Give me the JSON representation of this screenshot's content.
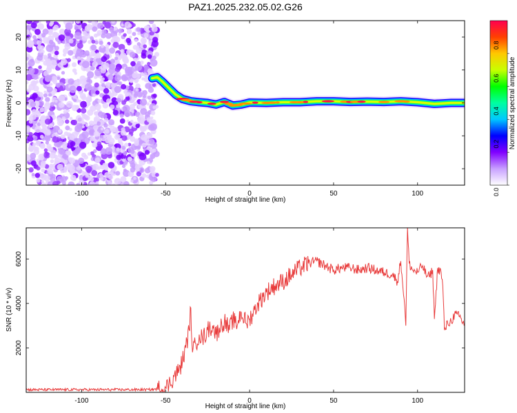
{
  "chart_data": [
    {
      "type": "heatmap",
      "title": "PAZ1.2025.232.05.02.G26",
      "xlabel": "Height of straight line (km)",
      "ylabel": "Frequency (Hz)",
      "xlim": [
        -133,
        128
      ],
      "ylim": [
        -25,
        25
      ],
      "xticks": [
        -100,
        -50,
        0,
        50,
        100
      ],
      "yticks": [
        -20,
        -10,
        0,
        10,
        20
      ],
      "colorbar": {
        "label": "Normalized spectral amplitude",
        "range": [
          0,
          1
        ],
        "ticks": [
          "0.0",
          "0.2",
          "0.4",
          "0.6",
          "0.8"
        ],
        "colors": [
          "#ffffff",
          "#c8a0ff",
          "#8000ff",
          "#0000ff",
          "#00c8ff",
          "#00ffa0",
          "#00ff00",
          "#c8ff00",
          "#ffc800",
          "#ff4000",
          "#ff0050"
        ]
      },
      "signal_ridge": {
        "x": [
          -58,
          -55,
          -52,
          -48,
          -44,
          -40,
          -35,
          -30,
          -25,
          -20,
          -15,
          -10,
          -5,
          0,
          10,
          20,
          30,
          40,
          50,
          60,
          70,
          80,
          90,
          100,
          110,
          120,
          128
        ],
        "y": [
          7.5,
          7.8,
          6.5,
          4.5,
          2.5,
          1.2,
          0.5,
          0.2,
          0.0,
          -0.5,
          0.3,
          -0.8,
          -0.5,
          0.1,
          0.0,
          0.2,
          0.2,
          0.5,
          0.5,
          0.3,
          0.4,
          0.3,
          0.5,
          0.2,
          -0.3,
          0.0,
          0.0
        ]
      }
    },
    {
      "type": "line",
      "title": "",
      "xlabel": "Height of straight line (km)",
      "ylabel": "SNR (10 * v/v)",
      "xlim": [
        -133,
        128
      ],
      "ylim": [
        0,
        7400
      ],
      "xticks": [
        -100,
        -50,
        0,
        50,
        100
      ],
      "yticks": [
        2000,
        4000,
        6000
      ],
      "series": [
        {
          "color": "#e83a3a",
          "x": [
            -133,
            -120,
            -100,
            -80,
            -60,
            -55,
            -50,
            -48,
            -45,
            -42,
            -40,
            -38,
            -36,
            -35,
            -34,
            -32,
            -30,
            -28,
            -25,
            -22,
            -20,
            -18,
            -15,
            -12,
            -10,
            -8,
            -5,
            -2,
            0,
            3,
            5,
            8,
            10,
            15,
            20,
            25,
            30,
            35,
            40,
            45,
            50,
            55,
            60,
            65,
            70,
            75,
            80,
            85,
            88,
            90,
            92,
            93,
            94,
            95,
            97,
            100,
            103,
            105,
            107,
            109,
            110,
            112,
            114,
            115,
            116,
            118,
            120,
            122,
            125,
            128
          ],
          "y": [
            120,
            120,
            120,
            120,
            120,
            150,
            200,
            350,
            700,
            1000,
            1400,
            2000,
            2800,
            3800,
            1800,
            2200,
            2600,
            2400,
            2800,
            3000,
            2600,
            2900,
            3200,
            2800,
            3300,
            3000,
            3600,
            3100,
            3300,
            3700,
            4000,
            4300,
            4500,
            4800,
            5000,
            5300,
            5600,
            5800,
            5900,
            5700,
            5500,
            5600,
            5600,
            5500,
            5600,
            5500,
            5400,
            5300,
            5000,
            5900,
            4200,
            3000,
            7400,
            5800,
            5500,
            5400,
            5700,
            5300,
            5200,
            5500,
            3300,
            5600,
            5400,
            4800,
            2800,
            3100,
            3200,
            3500,
            3400,
            3000
          ]
        }
      ]
    }
  ]
}
